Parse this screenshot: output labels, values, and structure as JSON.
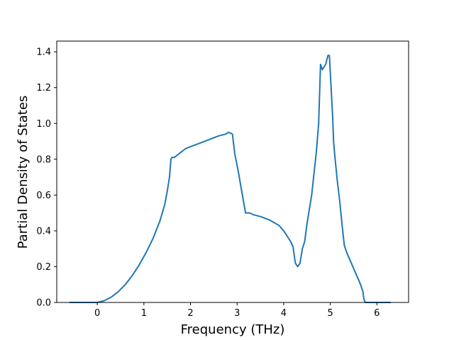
{
  "chart_data": {
    "type": "line",
    "title": "",
    "xlabel": "Frequency (THz)",
    "ylabel": "Partial Density of States",
    "xlim": [
      -0.87,
      6.68
    ],
    "ylim": [
      0.0,
      1.46
    ],
    "xticks": [
      0,
      1,
      2,
      3,
      4,
      5,
      6
    ],
    "yticks": [
      0.0,
      0.2,
      0.4,
      0.6,
      0.8,
      1.0,
      1.2,
      1.4
    ],
    "xtick_labels": [
      "0",
      "1",
      "2",
      "3",
      "4",
      "5",
      "6"
    ],
    "ytick_labels": [
      "0.0",
      "0.2",
      "0.4",
      "0.6",
      "0.8",
      "1.0",
      "1.2",
      "1.4"
    ],
    "grid": false,
    "legend": null,
    "series": [
      {
        "color": "#1f77b4",
        "x": [
          -0.6,
          0.0,
          0.15,
          0.3,
          0.45,
          0.6,
          0.75,
          0.9,
          1.05,
          1.2,
          1.35,
          1.45,
          1.5,
          1.55,
          1.58,
          1.6,
          1.65,
          1.7,
          1.8,
          1.9,
          2.0,
          2.2,
          2.4,
          2.6,
          2.75,
          2.82,
          2.87,
          2.9,
          2.95,
          3.02,
          3.1,
          3.18,
          3.27,
          3.35,
          3.5,
          3.7,
          3.9,
          4.0,
          4.1,
          4.15,
          4.2,
          4.25,
          4.3,
          4.35,
          4.4,
          4.45,
          4.5,
          4.55,
          4.6,
          4.7,
          4.75,
          4.79,
          4.83,
          4.85,
          4.9,
          4.95,
          4.98,
          5.05,
          5.07,
          5.1,
          5.15,
          5.2,
          5.25,
          5.3,
          5.35,
          5.4,
          5.5,
          5.6,
          5.65,
          5.7,
          5.72,
          5.75,
          5.8,
          6.0,
          6.3
        ],
        "y": [
          0.0,
          0.0,
          0.01,
          0.03,
          0.06,
          0.1,
          0.15,
          0.21,
          0.28,
          0.36,
          0.46,
          0.55,
          0.62,
          0.7,
          0.8,
          0.81,
          0.81,
          0.82,
          0.84,
          0.86,
          0.87,
          0.89,
          0.91,
          0.93,
          0.94,
          0.95,
          0.945,
          0.94,
          0.83,
          0.74,
          0.62,
          0.5,
          0.5,
          0.49,
          0.48,
          0.46,
          0.43,
          0.4,
          0.36,
          0.34,
          0.31,
          0.22,
          0.2,
          0.22,
          0.3,
          0.34,
          0.44,
          0.52,
          0.6,
          0.84,
          1.0,
          1.33,
          1.3,
          1.31,
          1.33,
          1.38,
          1.38,
          1.04,
          0.9,
          0.81,
          0.68,
          0.57,
          0.44,
          0.32,
          0.28,
          0.25,
          0.19,
          0.13,
          0.1,
          0.06,
          0.02,
          0.0,
          0.0,
          0.0,
          0.0
        ]
      }
    ]
  }
}
